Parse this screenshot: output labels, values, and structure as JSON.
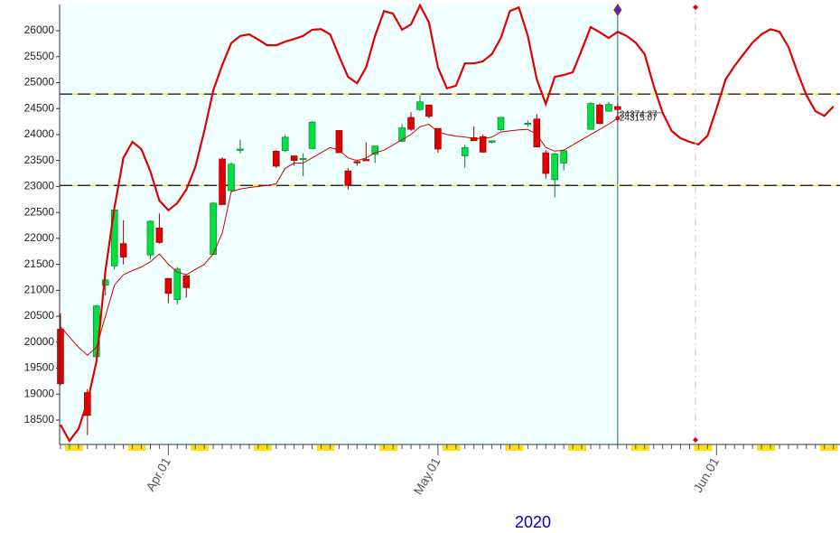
{
  "chart_data": {
    "type": "candlestick",
    "x_label": "2020",
    "categories": [
      null,
      null,
      null,
      null,
      null,
      null,
      null,
      null,
      null,
      null,
      null,
      null,
      "Apr.01",
      null,
      null,
      null,
      null,
      null,
      null,
      null,
      null,
      null,
      null,
      null,
      null,
      null,
      null,
      null,
      null,
      null,
      null,
      null,
      null,
      null,
      null,
      null,
      null,
      null,
      null,
      null,
      null,
      null,
      "May.01",
      null,
      null,
      null,
      null,
      null,
      null,
      null,
      null,
      null,
      null,
      null,
      null,
      null,
      null,
      null,
      null,
      null,
      null,
      null,
      null,
      null,
      null,
      null,
      null,
      null,
      null,
      null,
      null,
      null,
      null,
      "Jun.01",
      null,
      null,
      null,
      null,
      null,
      null,
      null,
      null,
      null,
      null,
      null,
      null,
      null
    ],
    "candles": {
      "up_color": "#00e040",
      "down_color": "#e00000",
      "open": [
        20250,
        null,
        null,
        19030,
        19720,
        21100,
        21470,
        21900,
        null,
        null,
        21680,
        22200,
        21230,
        20820,
        21280,
        null,
        null,
        21690,
        23530,
        22920,
        23720,
        null,
        null,
        null,
        23680,
        23690,
        23590,
        23530,
        23730,
        null,
        null,
        24080,
        23300,
        23480,
        23520,
        23620,
        null,
        null,
        23870,
        24330,
        24480,
        24570,
        24120,
        null,
        null,
        23590,
        23940,
        23960,
        23850,
        24090,
        null,
        null,
        24220,
        24300,
        23650,
        23130,
        23450,
        null,
        null,
        24100,
        24570,
        24450,
        24540,
        null,
        null,
        null,
        null,
        null,
        null,
        null,
        null,
        null,
        null,
        null,
        null,
        null,
        null,
        null,
        null,
        null,
        null,
        null,
        null,
        null,
        null
      ],
      "high": [
        20550,
        null,
        null,
        19100,
        20720,
        21250,
        22560,
        22350,
        null,
        null,
        22350,
        22480,
        21230,
        21450,
        21300,
        null,
        null,
        22700,
        23560,
        23460,
        23900,
        null,
        null,
        null,
        23700,
        23990,
        23590,
        23640,
        24260,
        null,
        null,
        24080,
        23350,
        23500,
        23850,
        23780,
        null,
        null,
        24200,
        24430,
        24760,
        24580,
        24120,
        null,
        null,
        23800,
        24160,
        24000,
        23880,
        24340,
        null,
        null,
        24270,
        24390,
        23700,
        23650,
        23710,
        null,
        null,
        24620,
        24600,
        24630,
        24600,
        null,
        null,
        null,
        null,
        null,
        null,
        null,
        null,
        null,
        null,
        null,
        null,
        null,
        null,
        null,
        null,
        null,
        null,
        null,
        null,
        null,
        null
      ],
      "low": [
        19170,
        null,
        null,
        18210,
        19650,
        20900,
        21400,
        21500,
        null,
        null,
        21600,
        21900,
        20750,
        20730,
        20860,
        null,
        null,
        21690,
        22650,
        22900,
        23640,
        null,
        null,
        null,
        23360,
        23660,
        23400,
        23200,
        23730,
        null,
        null,
        23650,
        22940,
        23400,
        23500,
        23450,
        null,
        null,
        23860,
        24070,
        24460,
        24310,
        23650,
        null,
        null,
        23360,
        23880,
        23650,
        23830,
        24070,
        null,
        null,
        24150,
        23760,
        23150,
        22790,
        23310,
        null,
        null,
        24100,
        24200,
        24440,
        24300,
        null,
        null,
        null,
        null,
        null,
        null,
        null,
        null,
        null,
        null,
        null,
        null,
        null,
        null,
        null,
        null,
        null,
        null,
        null,
        null,
        null,
        null
      ],
      "close": [
        19200,
        null,
        null,
        18590,
        20700,
        21200,
        22550,
        21640,
        null,
        null,
        22330,
        21920,
        20940,
        21410,
        21050,
        null,
        null,
        22680,
        22650,
        23430,
        23720,
        null,
        null,
        null,
        23390,
        23950,
        23500,
        23540,
        24240,
        null,
        null,
        23650,
        23020,
        23470,
        23510,
        23780,
        null,
        null,
        24130,
        24100,
        24630,
        24350,
        23720,
        null,
        null,
        23750,
        23880,
        23660,
        23880,
        24330,
        null,
        null,
        24220,
        23760,
        23250,
        23630,
        23690,
        null,
        null,
        24600,
        24210,
        24580,
        24480,
        null,
        null,
        null,
        null,
        null,
        null,
        null,
        null,
        null,
        null,
        null,
        null,
        null,
        null,
        null,
        null,
        null,
        null,
        null,
        null,
        null,
        null
      ]
    },
    "series": [
      {
        "color": "#e00000",
        "width": 2.2,
        "values": [
          18410,
          18100,
          18330,
          18850,
          19630,
          21370,
          22590,
          23550,
          23860,
          23720,
          23290,
          22730,
          22540,
          22680,
          22940,
          23370,
          24070,
          24850,
          25340,
          25760,
          25900,
          25930,
          25830,
          25720,
          25720,
          25790,
          25840,
          25900,
          26020,
          26030,
          25930,
          25510,
          25110,
          24990,
          25290,
          25900,
          26380,
          26330,
          26020,
          26120,
          26490,
          26160,
          25290,
          24890,
          24940,
          25370,
          25370,
          25410,
          25550,
          25860,
          26380,
          26450,
          25900,
          25060,
          24590,
          25110,
          25150,
          25200,
          25630,
          26070,
          25970,
          25860,
          25980,
          25900,
          25770,
          25550,
          24940,
          24420,
          24070,
          23930,
          23860,
          23810,
          23980,
          24500,
          25060,
          25320,
          25550,
          25770,
          25930,
          26030,
          25980,
          25690,
          25200,
          24760,
          24450,
          24360,
          24540
        ]
      },
      {
        "color": "#d00000",
        "width": 1,
        "values": [
          20300,
          20100,
          19900,
          19750,
          19900,
          20500,
          21100,
          21300,
          21380,
          21450,
          21550,
          21700,
          21500,
          21350,
          21300,
          21400,
          21500,
          21700,
          22100,
          22900,
          22950,
          22980,
          23000,
          23020,
          23050,
          23350,
          23450,
          23450,
          23550,
          23650,
          23750,
          23700,
          23550,
          23500,
          23550,
          23650,
          23700,
          23800,
          23900,
          24000,
          24150,
          24200,
          24050,
          24000,
          23970,
          23950,
          23930,
          23920,
          23950,
          24050,
          24070,
          24090,
          24100,
          24000,
          23750,
          23680,
          23700,
          23800,
          23900,
          24000,
          24100,
          24200,
          24315,
          null,
          null,
          null,
          null,
          null,
          null,
          null,
          null,
          null,
          null,
          null,
          null,
          null,
          null,
          null,
          null,
          null,
          null,
          null,
          null,
          null,
          null,
          null,
          null
        ]
      }
    ],
    "levels": [
      24780,
      23020
    ],
    "annotations": [
      "24374.37",
      "24315.07"
    ],
    "ylim": [
      18030,
      26505
    ],
    "yticks": [
      18500,
      19000,
      19500,
      20000,
      20500,
      21000,
      21500,
      22000,
      22500,
      23000,
      23500,
      24000,
      24500,
      25000,
      25500,
      26000
    ]
  }
}
